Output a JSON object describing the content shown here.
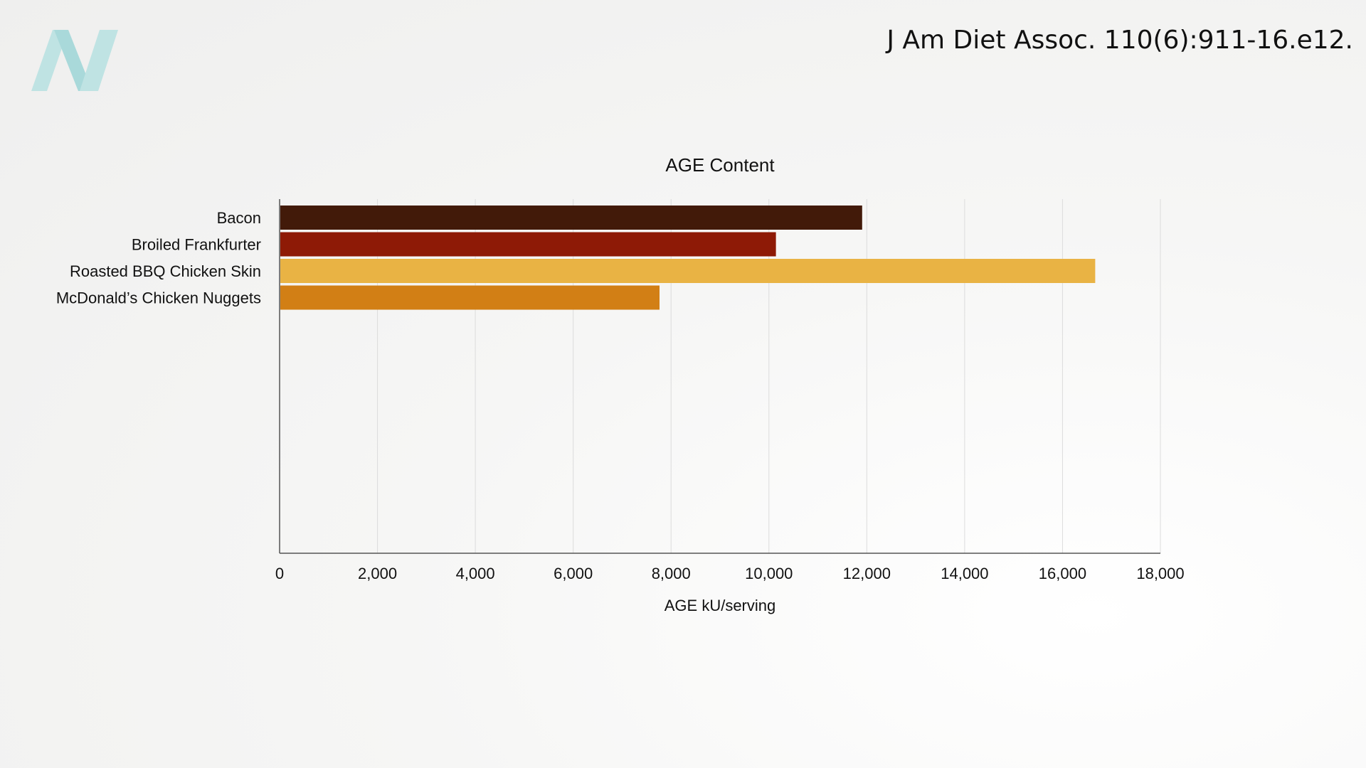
{
  "citation": "J Am Diet Assoc. 110(6):911-16.e12.",
  "logo_icon": "stylized-N-logo",
  "chart_data": {
    "type": "bar",
    "orientation": "horizontal",
    "title": "AGE Content",
    "xlabel": "AGE kU/serving",
    "ylabel": "",
    "xlim": [
      0,
      18000
    ],
    "xticks": [
      0,
      2000,
      4000,
      6000,
      8000,
      10000,
      12000,
      14000,
      16000,
      18000
    ],
    "xtick_labels": [
      "0",
      "2,000",
      "4,000",
      "6,000",
      "8,000",
      "10,000",
      "12,000",
      "14,000",
      "16,000",
      "18,000"
    ],
    "grid": true,
    "categories": [
      "Bacon",
      "Broiled Frankfurter",
      "Roasted BBQ Chicken Skin",
      "McDonald’s Chicken Nuggets"
    ],
    "values": [
      11905,
      10143,
      16668,
      7764
    ],
    "colors": [
      "#421a09",
      "#8e1a06",
      "#e9b344",
      "#d27f15"
    ]
  }
}
